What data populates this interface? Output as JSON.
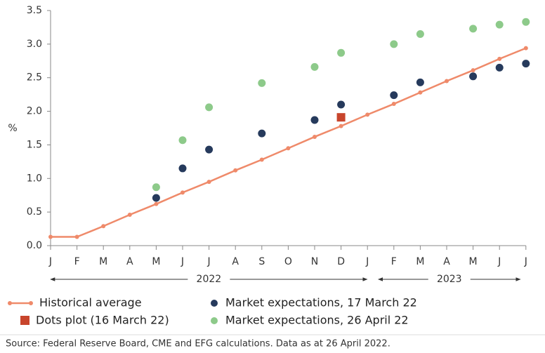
{
  "chart_data": {
    "type": "line",
    "y_label": "%",
    "categories": [
      "J",
      "F",
      "M",
      "A",
      "M",
      "J",
      "J",
      "A",
      "S",
      "O",
      "N",
      "D",
      "J",
      "F",
      "M",
      "A",
      "M",
      "J",
      "J"
    ],
    "years": [
      "2022",
      "2023"
    ],
    "ylim": [
      0,
      3.5
    ],
    "yticks": [
      {
        "value": 0,
        "label": "0.0"
      },
      0.5,
      {
        "value": 1,
        "label": "1.0"
      },
      1.5,
      {
        "value": 2,
        "label": "2.0"
      },
      2.5,
      {
        "value": 3,
        "label": "3.0"
      },
      3.5
    ],
    "series": [
      {
        "name": "Historical average",
        "color": "#ef8a6a",
        "style": "line",
        "values": [
          0.13,
          0.13,
          0.29,
          0.46,
          0.62,
          0.79,
          0.95,
          1.12,
          1.28,
          1.45,
          1.62,
          1.78,
          1.95,
          2.11,
          2.28,
          2.45,
          2.61,
          2.78,
          2.94
        ]
      },
      {
        "name": "Dots plot (16 March 22)",
        "color": "#c8452c",
        "style": "square",
        "values": [
          null,
          null,
          null,
          null,
          null,
          null,
          null,
          null,
          null,
          null,
          null,
          1.91,
          null,
          null,
          null,
          null,
          null,
          null,
          null
        ]
      },
      {
        "name": "Market expectations, 17 March 22",
        "color": "#263a5c",
        "style": "dot",
        "values": [
          null,
          null,
          null,
          null,
          0.71,
          1.15,
          1.43,
          null,
          1.67,
          null,
          1.87,
          2.1,
          null,
          2.24,
          2.43,
          null,
          2.52,
          2.65,
          2.71
        ]
      },
      {
        "name": "Market expectations, 26 April 22",
        "color": "#8dca8a",
        "style": "dot",
        "values": [
          null,
          null,
          null,
          null,
          0.87,
          1.57,
          2.06,
          null,
          2.42,
          null,
          2.66,
          2.87,
          null,
          3.0,
          3.15,
          null,
          3.23,
          3.29,
          3.33
        ]
      }
    ],
    "source": "Source: Federal Reserve Board, CME and EFG calculations. Data as at 26 April 2022."
  }
}
